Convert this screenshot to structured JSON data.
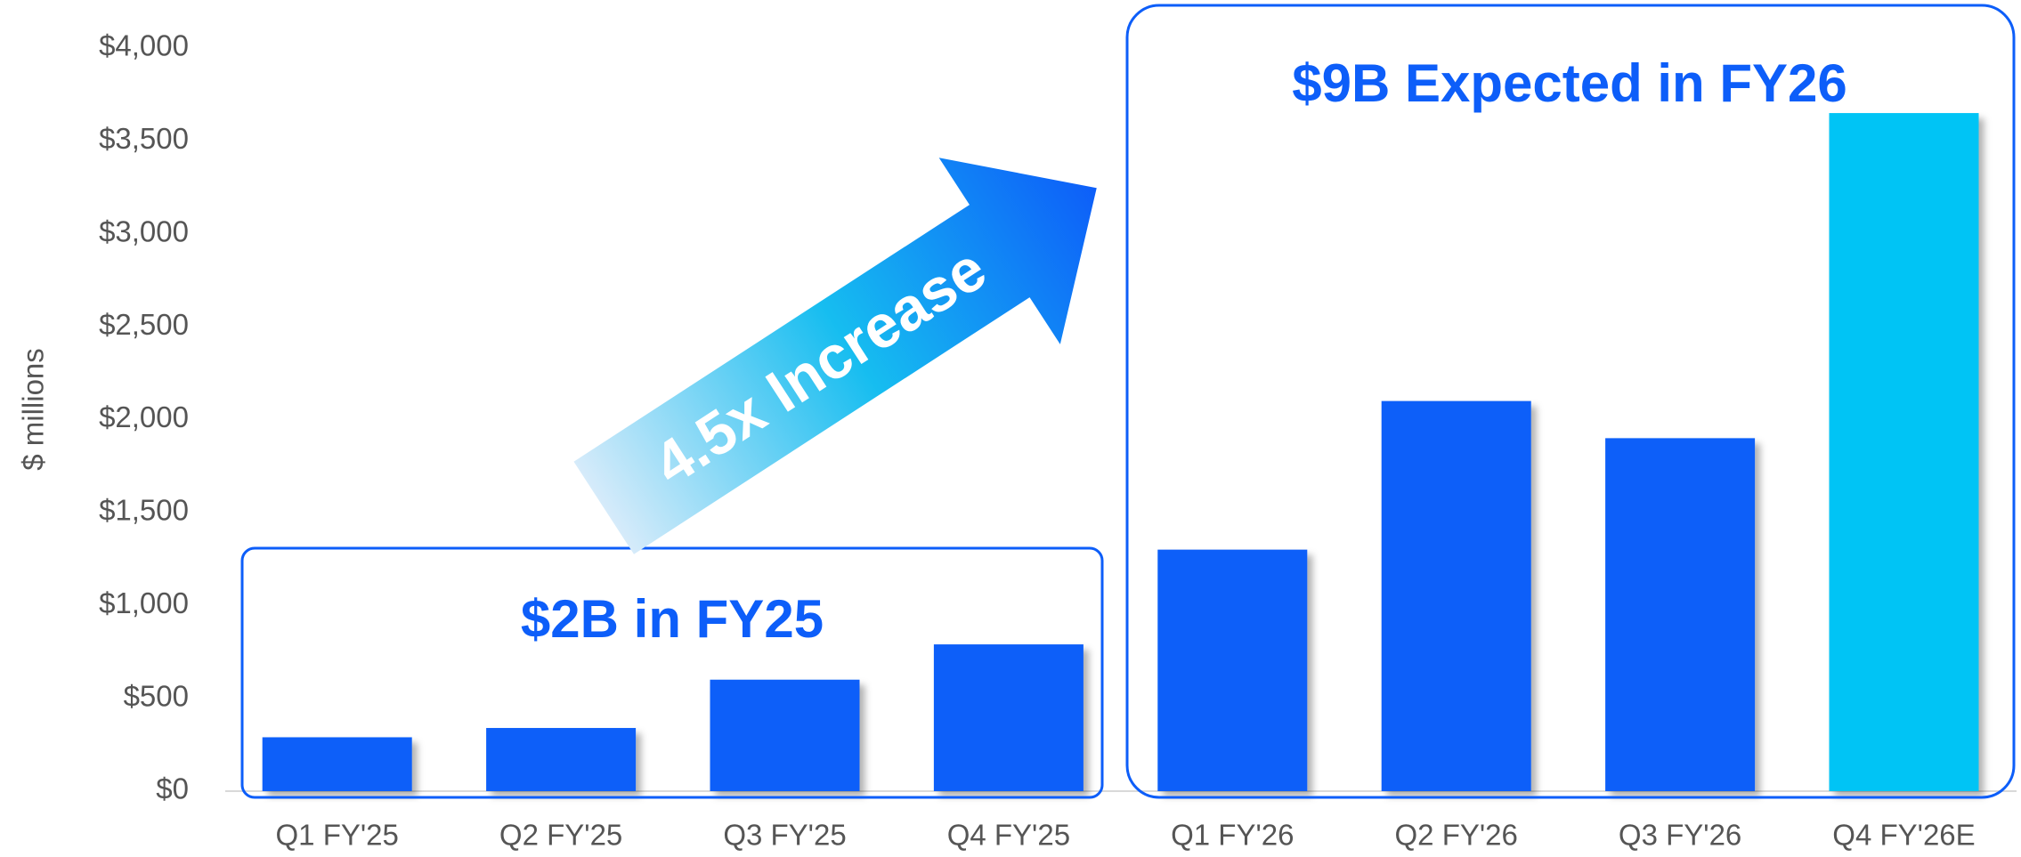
{
  "chart_data": {
    "type": "bar",
    "y_label": "$ millions",
    "categories": [
      "Q1 FY'25",
      "Q2 FY'25",
      "Q3 FY'25",
      "Q4 FY'25",
      "Q1 FY'26",
      "Q2 FY'26",
      "Q3 FY'26",
      "Q4 FY'26E"
    ],
    "values": [
      290,
      340,
      600,
      790,
      1300,
      2100,
      1900,
      3650
    ],
    "colors": [
      "#0d5ef9",
      "#0d5ef9",
      "#0d5ef9",
      "#0d5ef9",
      "#0d5ef9",
      "#0d5ef9",
      "#0d5ef9",
      "#00c4f5"
    ],
    "ylim": [
      0,
      4000
    ],
    "yticks": [
      {
        "value": 0,
        "label": "$0"
      },
      {
        "value": 500,
        "label": "$500"
      },
      {
        "value": 1000,
        "label": "$1,000"
      },
      {
        "value": 1500,
        "label": "$1,500"
      },
      {
        "value": 2000,
        "label": "$2,000"
      },
      {
        "value": 2500,
        "label": "$2,500"
      },
      {
        "value": 3000,
        "label": "$3,000"
      },
      {
        "value": 3500,
        "label": "$3,500"
      },
      {
        "value": 4000,
        "label": "$4,000"
      }
    ],
    "annotations": [
      "$2B in FY25",
      "$9B Expected in FY26",
      "4.5x Increase"
    ]
  }
}
